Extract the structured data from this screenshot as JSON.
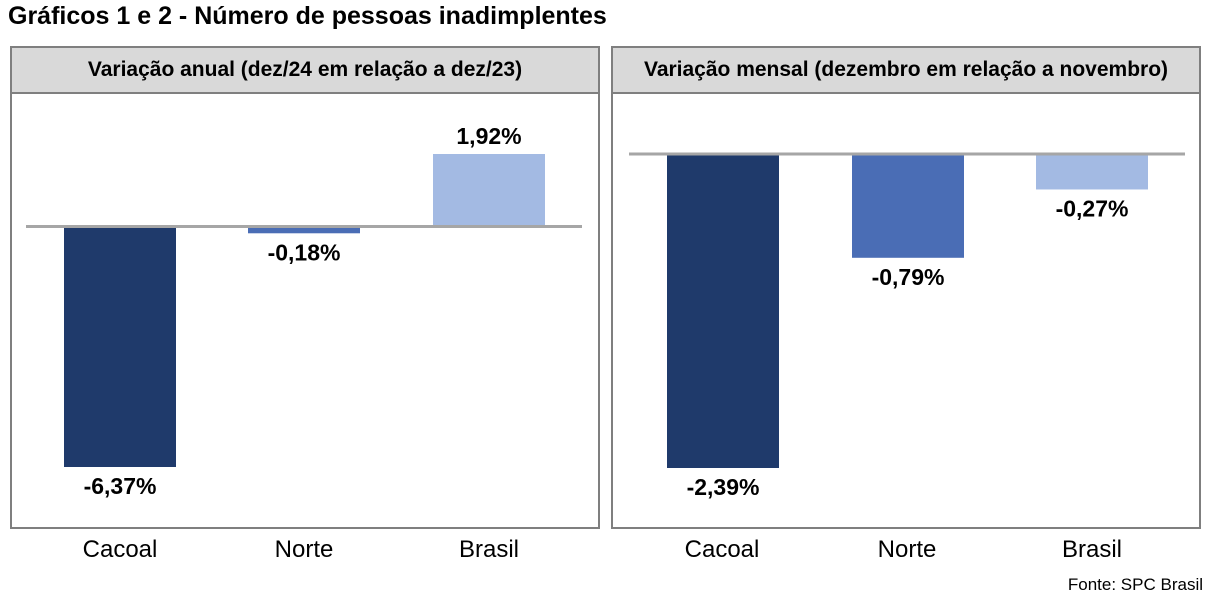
{
  "title": "Gráficos 1 e 2 - Número de pessoas inadimplentes",
  "source": "Fonte: SPC Brasil",
  "colors": {
    "Cacoal": "#1f3a6b",
    "Norte": "#4a6db5",
    "Brasil": "#a3bae3",
    "baseline": "#a6a6a6"
  },
  "chart_data": [
    {
      "type": "bar",
      "title": "Variação anual (dez/24 em relação a dez/23)",
      "categories": [
        "Cacoal",
        "Norte",
        "Brasil"
      ],
      "values": [
        -6.37,
        -0.18,
        1.92
      ],
      "labels": [
        "-6,37%",
        "-0,18%",
        "1,92%"
      ],
      "xlabel": "",
      "ylabel": "",
      "ylim": [
        -6.37,
        1.92
      ],
      "grid": false
    },
    {
      "type": "bar",
      "title": "Variação mensal (dezembro em relação a novembro)",
      "categories": [
        "Cacoal",
        "Norte",
        "Brasil"
      ],
      "values": [
        -2.39,
        -0.79,
        -0.27
      ],
      "labels": [
        "-2,39%",
        "-0,79%",
        "-0,27%"
      ],
      "xlabel": "",
      "ylabel": "",
      "ylim": [
        -2.39,
        0
      ],
      "grid": false
    }
  ]
}
